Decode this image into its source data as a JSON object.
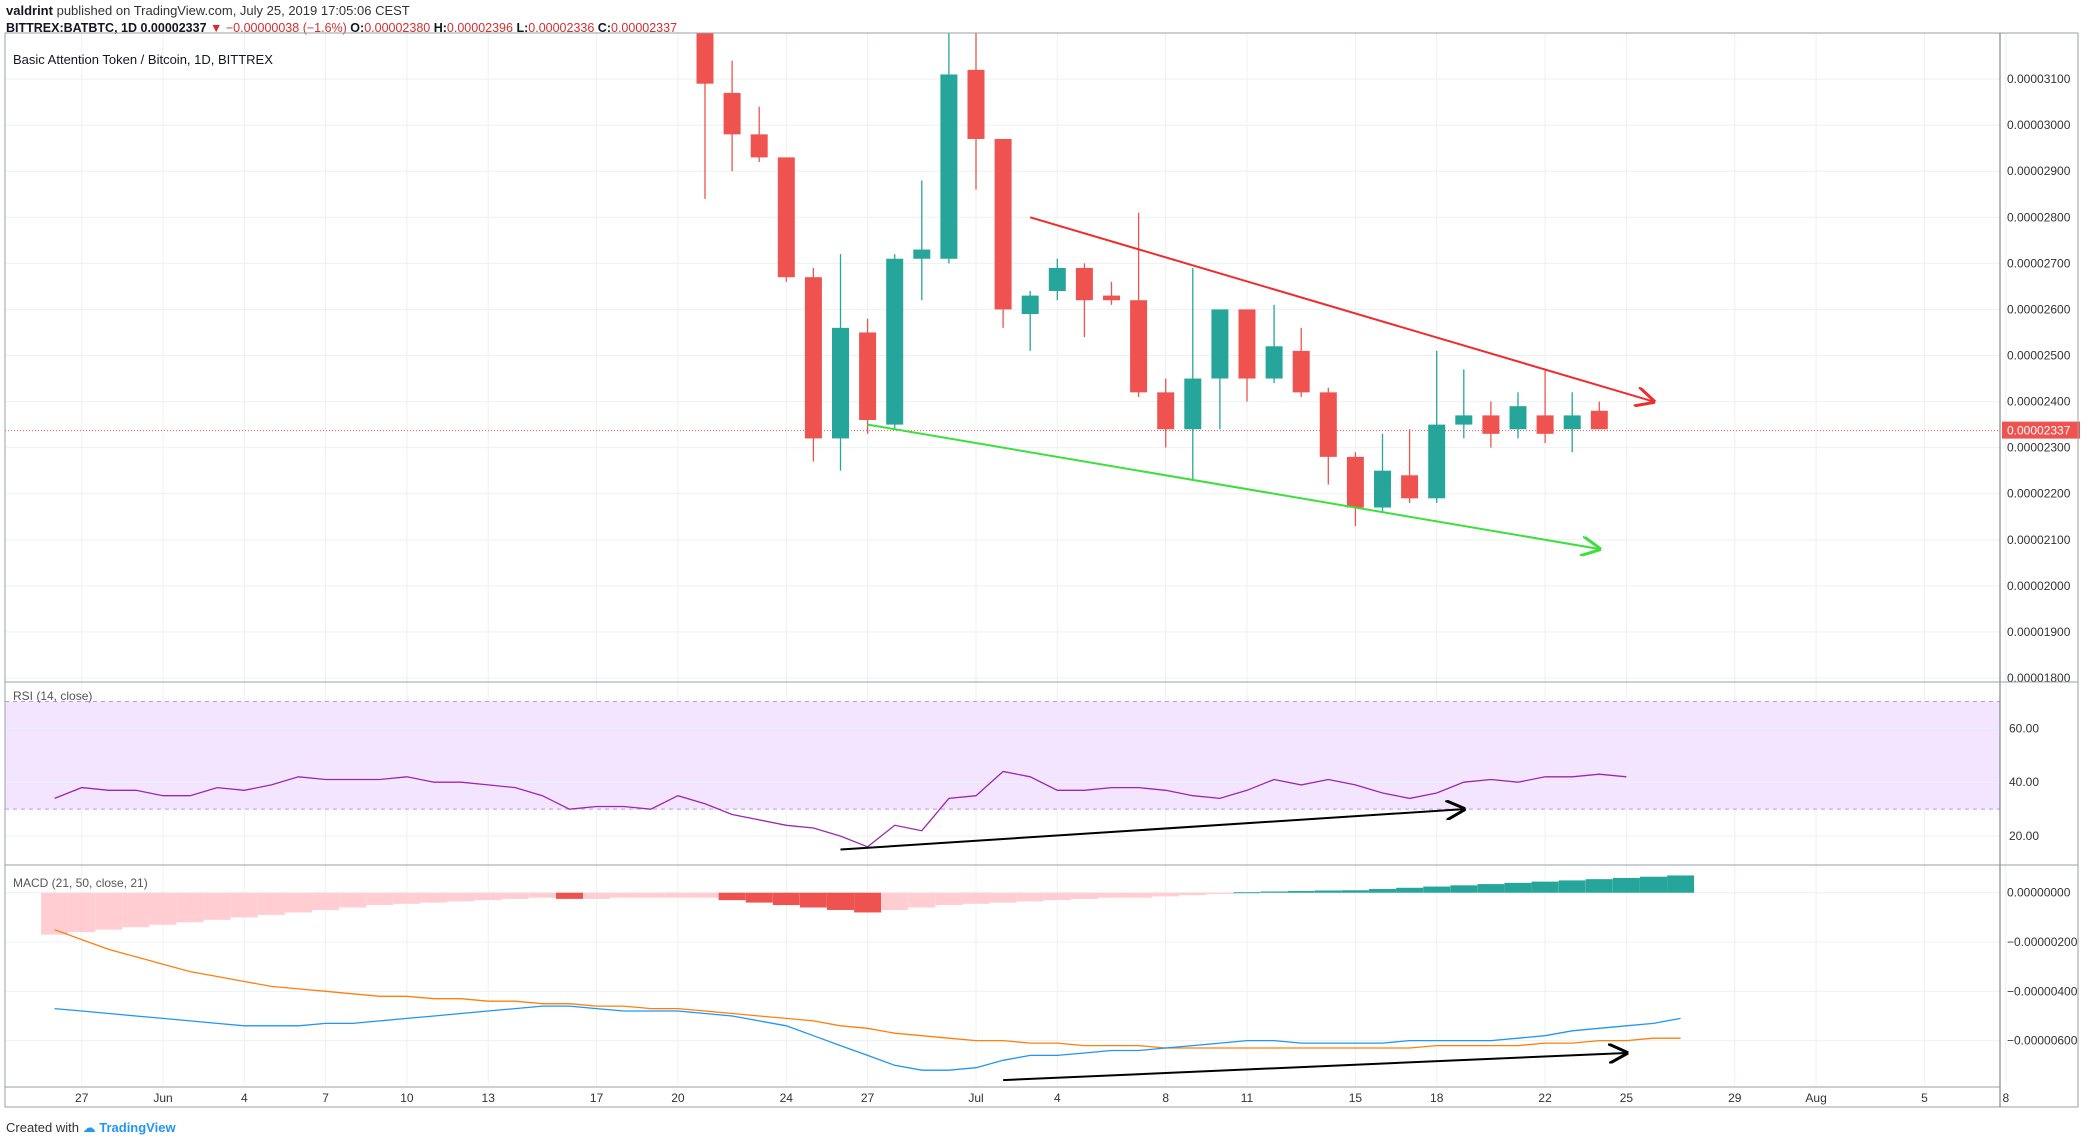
{
  "header": {
    "publisher": "valdrint",
    "published_text": "published on TradingView.com, July 25, 2019 17:05:06 CEST",
    "symbol": "BITTREX:BATBTC, 1D",
    "last": "0.00002337",
    "change": "▼ −0.00000038 (−1.6%)",
    "o_label": "O:",
    "o_value": "0.00002380",
    "h_label": "H:",
    "h_value": "0.00002396",
    "l_label": "L:",
    "l_value": "0.00002336",
    "c_label": "C:",
    "c_value": "0.00002337"
  },
  "footer": {
    "created_with": "Created with",
    "brand": "TradingView"
  },
  "chart_data": {
    "type": "candlestick",
    "title": "Basic Attention Token / Bitcoin, 1D, BITTREX",
    "price_axis": {
      "ticks": [
        "0.00003100",
        "0.00003000",
        "0.00002900",
        "0.00002800",
        "0.00002700",
        "0.00002600",
        "0.00002500",
        "0.00002400",
        "0.00002300",
        "0.00002200",
        "0.00002100",
        "0.00002000",
        "0.00001900",
        "0.00001800"
      ],
      "ylim": [
        1800,
        3200
      ],
      "last_price_label": "0.00002337",
      "last_price": 2337
    },
    "x_axis": {
      "ticks": [
        {
          "label": "27",
          "day": -3
        },
        {
          "label": "Jun",
          "day": 0
        },
        {
          "label": "4",
          "day": 3
        },
        {
          "label": "7",
          "day": 6
        },
        {
          "label": "10",
          "day": 9
        },
        {
          "label": "13",
          "day": 12
        },
        {
          "label": "17",
          "day": 16
        },
        {
          "label": "20",
          "day": 19
        },
        {
          "label": "24",
          "day": 23
        },
        {
          "label": "27",
          "day": 26
        },
        {
          "label": "Jul",
          "day": 30
        },
        {
          "label": "4",
          "day": 33
        },
        {
          "label": "8",
          "day": 37
        },
        {
          "label": "11",
          "day": 40
        },
        {
          "label": "15",
          "day": 44
        },
        {
          "label": "18",
          "day": 47
        },
        {
          "label": "22",
          "day": 51
        },
        {
          "label": "25",
          "day": 54
        },
        {
          "label": "29",
          "day": 58
        },
        {
          "label": "Aug",
          "day": 61
        },
        {
          "label": "5",
          "day": 65
        },
        {
          "label": "8",
          "day": 68
        }
      ]
    },
    "candles": [
      {
        "day": 20,
        "o": 3240,
        "h": 3270,
        "l": 2840,
        "c": 3090
      },
      {
        "day": 21,
        "o": 3070,
        "h": 3140,
        "l": 2900,
        "c": 2980
      },
      {
        "day": 22,
        "o": 2980,
        "h": 3040,
        "l": 2920,
        "c": 2930
      },
      {
        "day": 23,
        "o": 2930,
        "h": 2930,
        "l": 2660,
        "c": 2670
      },
      {
        "day": 24,
        "o": 2670,
        "h": 2690,
        "l": 2270,
        "c": 2320
      },
      {
        "day": 25,
        "o": 2320,
        "h": 2720,
        "l": 2250,
        "c": 2560
      },
      {
        "day": 26,
        "o": 2550,
        "h": 2580,
        "l": 2330,
        "c": 2360
      },
      {
        "day": 27,
        "o": 2350,
        "h": 2720,
        "l": 2340,
        "c": 2710
      },
      {
        "day": 28,
        "o": 2710,
        "h": 2880,
        "l": 2620,
        "c": 2730
      },
      {
        "day": 29,
        "o": 2710,
        "h": 3200,
        "l": 2700,
        "c": 3110
      },
      {
        "day": 30,
        "o": 3120,
        "h": 3200,
        "l": 2860,
        "c": 2970
      },
      {
        "day": 31,
        "o": 2970,
        "h": 2970,
        "l": 2560,
        "c": 2600
      },
      {
        "day": 32,
        "o": 2590,
        "h": 2640,
        "l": 2510,
        "c": 2630
      },
      {
        "day": 33,
        "o": 2640,
        "h": 2710,
        "l": 2620,
        "c": 2690
      },
      {
        "day": 34,
        "o": 2690,
        "h": 2700,
        "l": 2540,
        "c": 2620
      },
      {
        "day": 35,
        "o": 2630,
        "h": 2660,
        "l": 2610,
        "c": 2620
      },
      {
        "day": 36,
        "o": 2620,
        "h": 2810,
        "l": 2410,
        "c": 2420
      },
      {
        "day": 37,
        "o": 2420,
        "h": 2450,
        "l": 2300,
        "c": 2340
      },
      {
        "day": 38,
        "o": 2340,
        "h": 2690,
        "l": 2230,
        "c": 2450
      },
      {
        "day": 39,
        "o": 2450,
        "h": 2600,
        "l": 2340,
        "c": 2600
      },
      {
        "day": 40,
        "o": 2600,
        "h": 2600,
        "l": 2400,
        "c": 2450
      },
      {
        "day": 41,
        "o": 2450,
        "h": 2610,
        "l": 2440,
        "c": 2520
      },
      {
        "day": 42,
        "o": 2510,
        "h": 2560,
        "l": 2410,
        "c": 2420
      },
      {
        "day": 43,
        "o": 2420,
        "h": 2430,
        "l": 2220,
        "c": 2280
      },
      {
        "day": 44,
        "o": 2280,
        "h": 2290,
        "l": 2130,
        "c": 2170
      },
      {
        "day": 45,
        "o": 2170,
        "h": 2330,
        "l": 2160,
        "c": 2250
      },
      {
        "day": 46,
        "o": 2240,
        "h": 2340,
        "l": 2180,
        "c": 2190
      },
      {
        "day": 47,
        "o": 2190,
        "h": 2510,
        "l": 2180,
        "c": 2350
      },
      {
        "day": 48,
        "o": 2350,
        "h": 2470,
        "l": 2320,
        "c": 2370
      },
      {
        "day": 49,
        "o": 2370,
        "h": 2400,
        "l": 2300,
        "c": 2330
      },
      {
        "day": 50,
        "o": 2340,
        "h": 2420,
        "l": 2320,
        "c": 2390
      },
      {
        "day": 51,
        "o": 2370,
        "h": 2470,
        "l": 2310,
        "c": 2330
      },
      {
        "day": 52,
        "o": 2340,
        "h": 2420,
        "l": 2290,
        "c": 2370
      },
      {
        "day": 53,
        "o": 2380,
        "h": 2400,
        "l": 2340,
        "c": 2340
      }
    ],
    "trendlines": [
      {
        "color": "#ef2b2b",
        "from": {
          "day": 32,
          "value": 2800
        },
        "to": {
          "day": 55,
          "value": 2400
        }
      },
      {
        "color": "#3ddf3d",
        "from": {
          "day": 26,
          "value": 2350
        },
        "to": {
          "day": 53,
          "value": 2080
        }
      }
    ],
    "rsi": {
      "label": "RSI (14, close)",
      "ticks": [
        "60.00",
        "40.00",
        "20.00"
      ],
      "ylim": [
        10,
        75
      ],
      "band": [
        30,
        70
      ],
      "start_day": -4,
      "values": [
        34,
        38,
        37,
        37,
        35,
        35,
        38,
        37,
        39,
        42,
        41,
        41,
        41,
        42,
        40,
        40,
        39,
        38,
        35,
        30,
        31,
        31,
        30,
        35,
        32,
        28,
        26,
        24,
        23,
        20,
        16,
        24,
        22,
        34,
        35,
        44,
        42,
        37,
        37,
        38,
        38,
        37,
        35,
        34,
        37,
        41,
        39,
        41,
        39,
        36,
        34,
        36,
        40,
        41,
        40,
        42,
        42,
        43,
        42
      ],
      "divergence": {
        "color": "#000000",
        "from": {
          "day": 25,
          "value": 15
        },
        "to": {
          "day": 48,
          "value": 30
        }
      }
    },
    "macd": {
      "label": "MACD (21, 50, close, 21)",
      "ticks": [
        "0.00000000",
        "−0.00000200",
        "−0.00000400",
        "−0.00000600"
      ],
      "ylim": [
        -7.8e-06,
        8e-07
      ],
      "start_day": -4,
      "histogram": [
        -1.7e-06,
        -1.6e-06,
        -1.5e-06,
        -1.4e-06,
        -1.3e-06,
        -1.2e-06,
        -1.1e-06,
        -1e-06,
        -9e-07,
        -8e-07,
        -7e-07,
        -6e-07,
        -5e-07,
        -4.5e-07,
        -4e-07,
        -3.5e-07,
        -3e-07,
        -2.5e-07,
        -2e-07,
        -2.5e-07,
        -2.5e-07,
        -2e-07,
        -2e-07,
        -2e-07,
        -2e-07,
        -3e-07,
        -4e-07,
        -5e-07,
        -6e-07,
        -7e-07,
        -8e-07,
        -7e-07,
        -6e-07,
        -5e-07,
        -4.5e-07,
        -4e-07,
        -3.5e-07,
        -3e-07,
        -2.5e-07,
        -2e-07,
        -2e-07,
        -1.5e-07,
        -1e-07,
        -5e-08,
        2e-08,
        5e-08,
        7e-08,
        9e-08,
        1e-07,
        1.5e-07,
        2e-07,
        2.5e-07,
        3e-07,
        3.5e-07,
        4e-07,
        4.5e-07,
        5e-07,
        5.5e-07,
        6e-07,
        6.5e-07,
        7e-07
      ],
      "macd_line": [
        -4.7e-06,
        -4.8e-06,
        -4.9e-06,
        -5e-06,
        -5.1e-06,
        -5.2e-06,
        -5.3e-06,
        -5.4e-06,
        -5.4e-06,
        -5.4e-06,
        -5.3e-06,
        -5.3e-06,
        -5.2e-06,
        -5.1e-06,
        -5e-06,
        -4.9e-06,
        -4.8e-06,
        -4.7e-06,
        -4.6e-06,
        -4.6e-06,
        -4.7e-06,
        -4.8e-06,
        -4.8e-06,
        -4.8e-06,
        -4.9e-06,
        -5e-06,
        -5.2e-06,
        -5.4e-06,
        -5.8e-06,
        -6.2e-06,
        -6.6e-06,
        -7e-06,
        -7.2e-06,
        -7.2e-06,
        -7.1e-06,
        -6.8e-06,
        -6.6e-06,
        -6.6e-06,
        -6.5e-06,
        -6.4e-06,
        -6.4e-06,
        -6.3e-06,
        -6.2e-06,
        -6.1e-06,
        -6e-06,
        -6e-06,
        -6.1e-06,
        -6.1e-06,
        -6.1e-06,
        -6.1e-06,
        -6e-06,
        -6e-06,
        -6e-06,
        -6e-06,
        -5.9e-06,
        -5.8e-06,
        -5.6e-06,
        -5.5e-06,
        -5.4e-06,
        -5.3e-06,
        -5.1e-06
      ],
      "signal_line": [
        -1.5e-06,
        -1.9e-06,
        -2.3e-06,
        -2.6e-06,
        -2.9e-06,
        -3.2e-06,
        -3.4e-06,
        -3.6e-06,
        -3.8e-06,
        -3.9e-06,
        -4e-06,
        -4.1e-06,
        -4.2e-06,
        -4.2e-06,
        -4.3e-06,
        -4.3e-06,
        -4.4e-06,
        -4.4e-06,
        -4.5e-06,
        -4.5e-06,
        -4.6e-06,
        -4.6e-06,
        -4.7e-06,
        -4.7e-06,
        -4.8e-06,
        -4.9e-06,
        -5e-06,
        -5.1e-06,
        -5.2e-06,
        -5.4e-06,
        -5.5e-06,
        -5.7e-06,
        -5.8e-06,
        -5.9e-06,
        -6e-06,
        -6e-06,
        -6.1e-06,
        -6.1e-06,
        -6.2e-06,
        -6.2e-06,
        -6.2e-06,
        -6.3e-06,
        -6.3e-06,
        -6.3e-06,
        -6.3e-06,
        -6.3e-06,
        -6.3e-06,
        -6.3e-06,
        -6.3e-06,
        -6.3e-06,
        -6.3e-06,
        -6.2e-06,
        -6.2e-06,
        -6.2e-06,
        -6.2e-06,
        -6.1e-06,
        -6.1e-06,
        -6e-06,
        -6e-06,
        -5.9e-06,
        -5.9e-06
      ],
      "divergence": {
        "color": "#000000",
        "from": {
          "day": 31,
          "value": -7.6e-06
        },
        "to": {
          "day": 54,
          "value": -6.5e-06
        }
      }
    },
    "colors": {
      "up": "#26a69a",
      "down": "#ef5350",
      "hist_pos": "#26a69a",
      "hist_neg_strong": "#ef5350",
      "hist_neg_light": "#ffcdd2",
      "macd_line": "#2196f3",
      "signal_line": "#ff7f0e",
      "rsi_line": "#9c27b0",
      "rsi_band": "#f3e5ff",
      "grid": "#eef0f3",
      "last_price": "#ef5350"
    }
  }
}
